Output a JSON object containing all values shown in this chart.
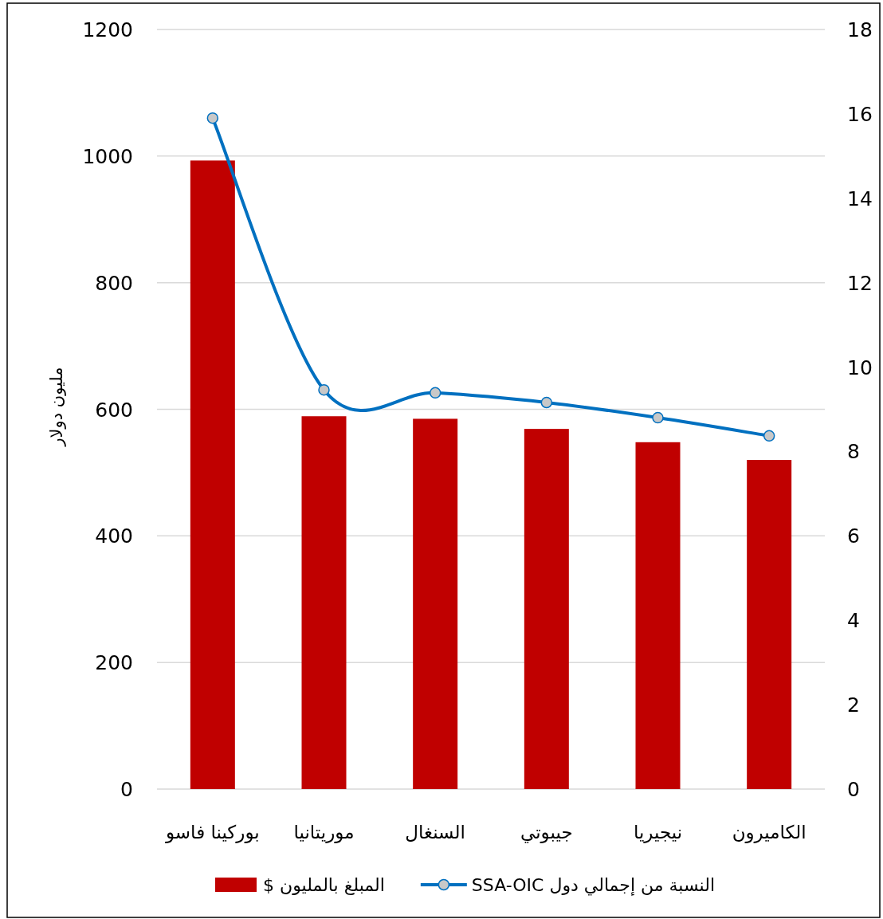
{
  "chart_data": {
    "type": "bar",
    "ylabel": "مليون دولار",
    "categories": [
      "بوركينا فاسو",
      "موريتانيا",
      "السنغال",
      "جيبوتي",
      "نيجيريا",
      "الكاميرون"
    ],
    "series": [
      {
        "name": "المبلغ بالمليون $",
        "color": "#c00000",
        "values": [
          993,
          589,
          585,
          569,
          548,
          520
        ]
      },
      {
        "name": "النسبة من إجمالي دول SSA-OIC",
        "type": "line",
        "axis": "y2",
        "color": "#0070c0",
        "values": [
          15.9,
          9.46,
          9.39,
          9.16,
          8.8,
          8.37
        ]
      }
    ],
    "ylim": [
      0,
      1200
    ],
    "yticks": [
      0,
      200,
      400,
      600,
      800,
      1000,
      1200
    ],
    "y2lim": [
      0,
      18
    ],
    "y2ticks": [
      0,
      2,
      4,
      6,
      8,
      10,
      12,
      14,
      16,
      18
    ],
    "grid": "y",
    "legend": "bottom",
    "marker": "circle",
    "line_style": "solid"
  }
}
